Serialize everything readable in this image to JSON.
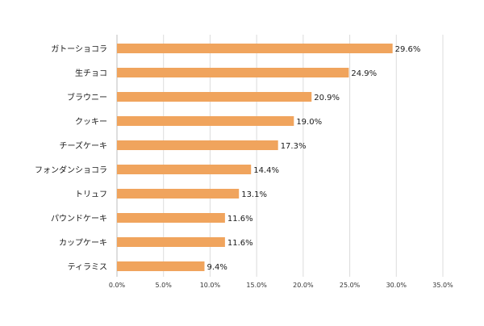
{
  "chart_data": {
    "type": "bar",
    "orientation": "horizontal",
    "title": "",
    "xlabel": "",
    "ylabel": "",
    "categories": [
      "ガトーショコラ",
      "生チョコ",
      "ブラウニー",
      "クッキー",
      "チーズケーキ",
      "フォンダンショコラ",
      "トリュフ",
      "パウンドケーキ",
      "カップケーキ",
      "ティラミス"
    ],
    "values": [
      29.6,
      24.9,
      20.9,
      19.0,
      17.3,
      14.4,
      13.1,
      11.6,
      11.6,
      9.4
    ],
    "value_labels": [
      "29.6%",
      "24.9%",
      "20.9%",
      "19.0%",
      "17.3%",
      "14.4%",
      "13.1%",
      "11.6%",
      "11.6%",
      "9.4%"
    ],
    "xlim": [
      0,
      35
    ],
    "x_ticks": [
      0,
      5,
      10,
      15,
      20,
      25,
      30,
      35
    ],
    "x_tick_labels": [
      "0.0%",
      "5.0%",
      "10.0%",
      "15.0%",
      "20.0%",
      "25.0%",
      "30.0%",
      "35.0%"
    ],
    "grid": true,
    "legend": "none",
    "colors": {
      "bar": "#F0A45D",
      "grid": "#DCDCDC",
      "text": "#1A1A1A"
    }
  }
}
